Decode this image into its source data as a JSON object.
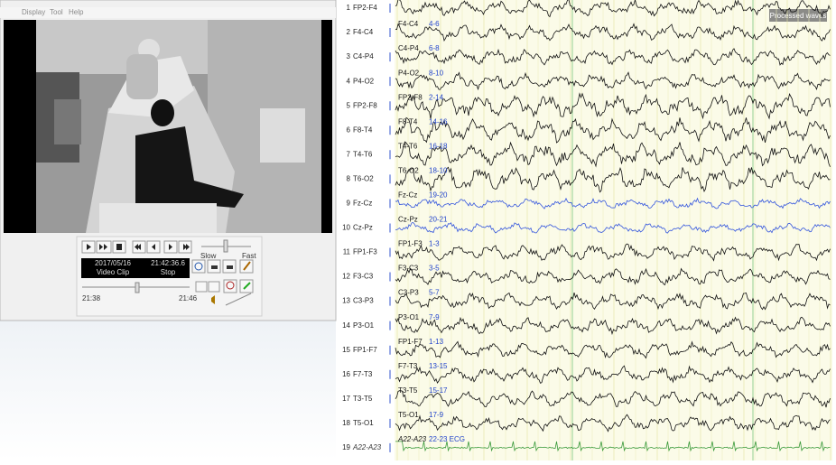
{
  "menu": [
    "Display",
    "Tool",
    "Help"
  ],
  "player": {
    "date": "2017/05/16",
    "time": "21:42:36.6",
    "source": "Video Clip",
    "state": "Stop",
    "speed_min": "Slow",
    "speed_max": "Fast",
    "range_start": "21:38",
    "range_end": "21:46"
  },
  "eeg": {
    "badge": "Processed waves",
    "channels": [
      {
        "number": 1,
        "name": "FP2-F4"
      },
      {
        "number": 2,
        "name": "F4-C4",
        "label": "F4-C4",
        "electrodes": "4-6"
      },
      {
        "number": 3,
        "name": "C4-P4",
        "label": "C4-P4",
        "electrodes": "6-8"
      },
      {
        "number": 4,
        "name": "P4-O2",
        "label": "P4-O2",
        "electrodes": "8-10"
      },
      {
        "number": 5,
        "name": "FP2-F8",
        "label": "FP2-F8",
        "electrodes": "2-14"
      },
      {
        "number": 6,
        "name": "F8-T4",
        "label": "F8-T4",
        "electrodes": "14-16"
      },
      {
        "number": 7,
        "name": "T4-T6",
        "label": "T4-T6",
        "electrodes": "16-18"
      },
      {
        "number": 8,
        "name": "T6-O2",
        "label": "T6-O2",
        "electrodes": "18-10"
      },
      {
        "number": 9,
        "name": "Fz-Cz",
        "label": "Fz-Cz",
        "electrodes": "19-20"
      },
      {
        "number": 10,
        "name": "Cz-Pz",
        "label": "Cz-Pz",
        "electrodes": "20-21"
      },
      {
        "number": 11,
        "name": "FP1-F3",
        "label": "FP1-F3",
        "electrodes": "1-3"
      },
      {
        "number": 12,
        "name": "F3-C3",
        "label": "F3-C3",
        "electrodes": "3-5"
      },
      {
        "number": 13,
        "name": "C3-P3",
        "label": "C3-P3",
        "electrodes": "5-7"
      },
      {
        "number": 14,
        "name": "P3-O1",
        "label": "P3-O1",
        "electrodes": "7-9"
      },
      {
        "number": 15,
        "name": "FP1-F7",
        "label": "FP1-F7",
        "electrodes": "1-13"
      },
      {
        "number": 16,
        "name": "F7-T3",
        "label": "F7-T3",
        "electrodes": "13-15"
      },
      {
        "number": 17,
        "name": "T3-T5",
        "label": "T3-T5",
        "electrodes": "15-17"
      },
      {
        "number": 18,
        "name": "T5-O1",
        "label": "T5-O1",
        "electrodes": "17-9"
      },
      {
        "number": 19,
        "name": "A22-A23",
        "label": "A22-A23",
        "electrodes": "22-23 ECG"
      }
    ]
  }
}
